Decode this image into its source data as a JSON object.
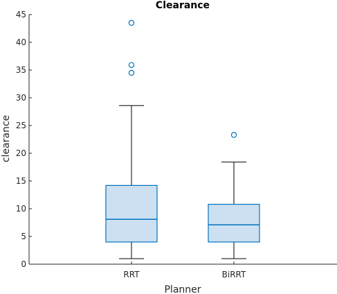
{
  "chart_data": {
    "type": "boxplot",
    "title": "Clearance",
    "xlabel": "Planner",
    "ylabel": "clearance",
    "ylim": [
      0,
      45
    ],
    "yticks": [
      0,
      5,
      10,
      15,
      20,
      25,
      30,
      35,
      40,
      45
    ],
    "grid": false,
    "box_color": "#0072BD",
    "box_fill": "#cde0f1",
    "categories": [
      "RRT",
      "BiRRT"
    ],
    "boxes": [
      {
        "name": "RRT",
        "whisker_low": 1.0,
        "q1": 4.0,
        "median": 8.1,
        "q3": 14.2,
        "whisker_high": 28.6,
        "outliers": [
          34.5,
          35.9,
          43.5
        ]
      },
      {
        "name": "BiRRT",
        "whisker_low": 1.0,
        "q1": 4.0,
        "median": 7.1,
        "q3": 10.8,
        "whisker_high": 18.4,
        "outliers": [
          23.3
        ]
      }
    ]
  }
}
